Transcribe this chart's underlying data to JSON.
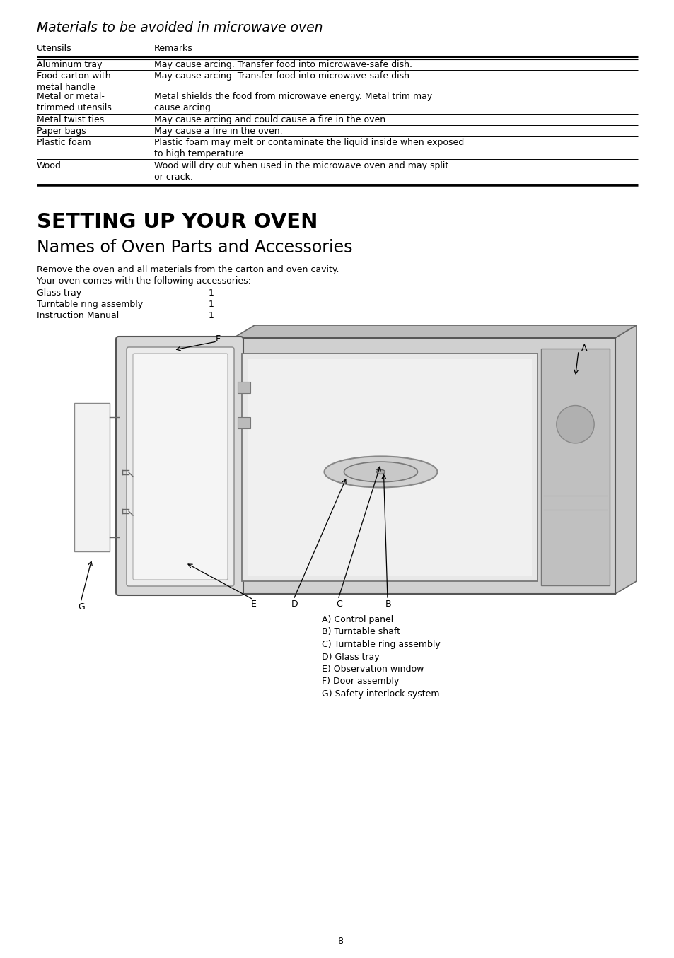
{
  "bg_color": "#ffffff",
  "page_number": "8",
  "section1_title": "Materials to be avoided in microwave oven",
  "col_header_col1": "Utensils",
  "col_header_col2": "Remarks",
  "table_rows": [
    [
      "Aluminum tray",
      "May cause arcing. Transfer food into microwave-safe dish."
    ],
    [
      "Food carton with\nmetal handle",
      "May cause arcing. Transfer food into microwave-safe dish."
    ],
    [
      "Metal or metal-\ntrimmed utensils",
      "Metal shields the food from microwave energy. Metal trim may\ncause arcing."
    ],
    [
      "Metal twist ties",
      "May cause arcing and could cause a fire in the oven."
    ],
    [
      "Paper bags",
      "May cause a fire in the oven."
    ],
    [
      "Plastic foam",
      "Plastic foam may melt or contaminate the liquid inside when exposed\nto high temperature."
    ],
    [
      "Wood",
      "Wood will dry out when used in the microwave oven and may split\nor crack."
    ]
  ],
  "section2_title": "SETTING UP YOUR OVEN",
  "section2_subtitle": "Names of Oven Parts and Accessories",
  "para1": "Remove the oven and all materials from the carton and oven cavity.",
  "para2": "Your oven comes with the following accessories:",
  "accessories": [
    [
      "Glass tray",
      "1"
    ],
    [
      "Turntable ring assembly",
      "1"
    ],
    [
      "Instruction Manual",
      "1"
    ]
  ],
  "parts_legend": [
    "A) Control panel",
    "B) Turntable shaft",
    "C) Turntable ring assembly",
    "D) Glass tray",
    "E) Observation window",
    "F) Door assembly",
    "G) Safety interlock system"
  ],
  "body_fontsize": 9.0,
  "small_fontsize": 8.5,
  "title1_fontsize": 13.5,
  "title2_fontsize": 21,
  "subtitle2_fontsize": 17,
  "label_fontsize": 9.0
}
